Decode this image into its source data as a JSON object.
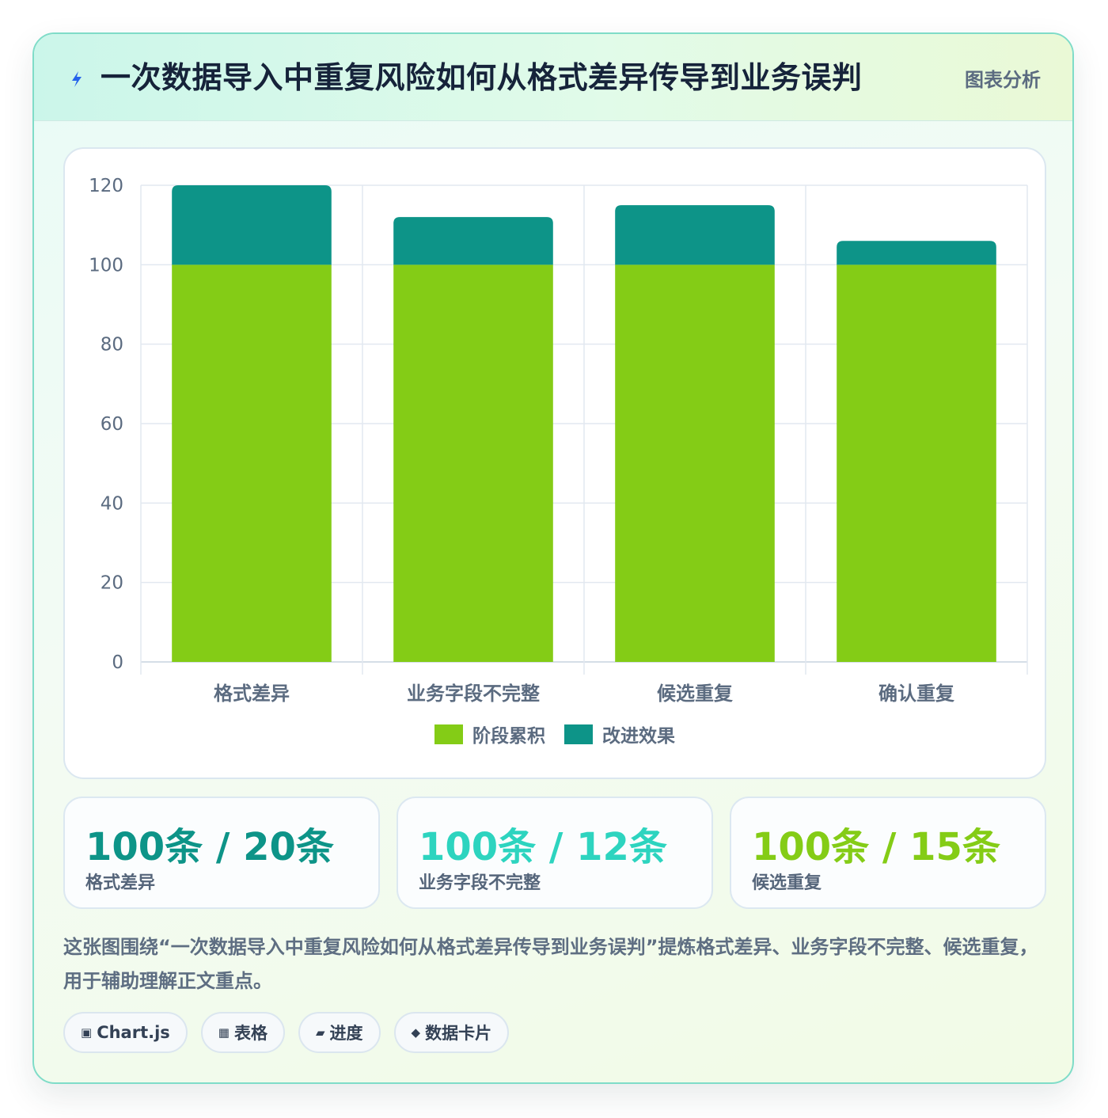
{
  "header": {
    "icon": "lightning-icon",
    "title": "一次数据导入中重复风险如何从格式差异传导到业务误判",
    "tag": "图表分析"
  },
  "chart_data": {
    "type": "bar",
    "stacked": true,
    "categories": [
      "格式差异",
      "业务字段不完整",
      "候选重复",
      "确认重复"
    ],
    "series": [
      {
        "name": "阶段累积",
        "values": [
          100,
          100,
          100,
          100
        ],
        "color": "#84cc16"
      },
      {
        "name": "改进效果",
        "values": [
          20,
          12,
          15,
          6
        ],
        "color": "#0d9488"
      }
    ],
    "ylim": [
      0,
      120
    ],
    "yticks": [
      0,
      20,
      40,
      60,
      80,
      100,
      120
    ],
    "grid": true,
    "legend": "bottom"
  },
  "stats": [
    {
      "value": "100条 / 20条",
      "label": "格式差异",
      "color": "#0d9488"
    },
    {
      "value": "100条 / 12条",
      "label": "业务字段不完整",
      "color": "#2dd4bf"
    },
    {
      "value": "100条 / 15条",
      "label": "候选重复",
      "color": "#84cc16"
    }
  ],
  "description": "这张图围绕“一次数据导入中重复风险如何从格式差异传导到业务误判”提炼格式差异、业务字段不完整、候选重复，用于辅助理解正文重点。",
  "chips": [
    {
      "icon": "▣",
      "icon_name": "chart-icon",
      "label": "Chart.js"
    },
    {
      "icon": "▦",
      "icon_name": "table-icon",
      "label": "表格"
    },
    {
      "icon": "▰",
      "icon_name": "progress-icon",
      "label": "进度"
    },
    {
      "icon": "◆",
      "icon_name": "data-card-icon",
      "label": "数据卡片"
    }
  ]
}
